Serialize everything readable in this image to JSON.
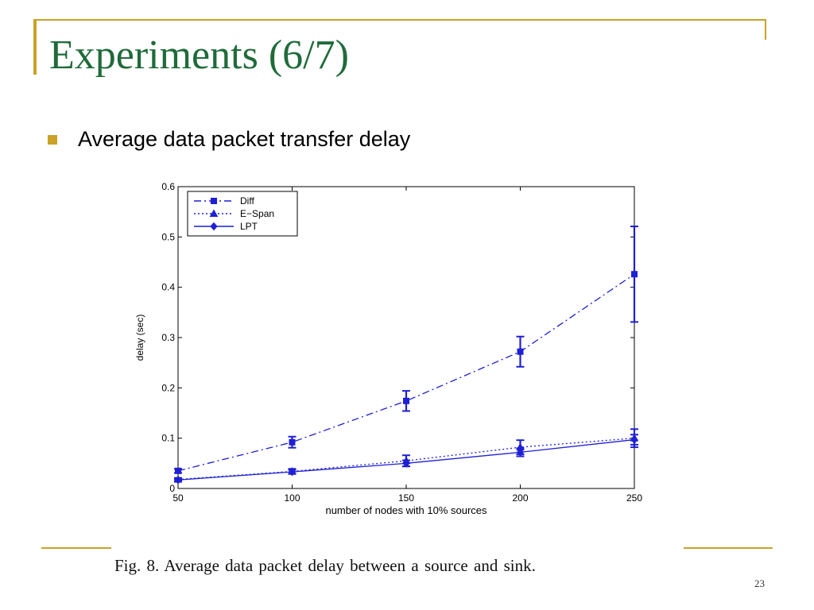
{
  "slide": {
    "title": "Experiments (6/7)",
    "bullet": "Average data packet transfer delay",
    "caption": "Fig. 8.    Average data packet delay between a source and sink.",
    "page_number": "23",
    "accent_color": "#c9a227",
    "title_color": "#1f6b3a"
  },
  "chart_data": {
    "type": "line",
    "title": "",
    "xlabel": "number of nodes with 10% sources",
    "ylabel": "delay (sec)",
    "x": [
      50,
      100,
      150,
      200,
      250
    ],
    "xlim": [
      50,
      250
    ],
    "ylim": [
      0,
      0.6
    ],
    "xticks": [
      50,
      100,
      150,
      200,
      250
    ],
    "yticks": [
      0,
      0.1,
      0.2,
      0.3,
      0.4,
      0.5,
      0.6
    ],
    "ytick_labels": [
      "0",
      "0.1",
      "0.2",
      "0.3",
      "0.4",
      "0.5",
      "0.6"
    ],
    "grid": false,
    "legend_position": "top-left",
    "series": [
      {
        "name": "Diff",
        "values": [
          0.035,
          0.092,
          0.174,
          0.272,
          0.426
        ],
        "error": [
          0.004,
          0.011,
          0.02,
          0.03,
          0.095
        ],
        "color": "#1f1fd6",
        "linestyle": "dash-dot",
        "marker": "square"
      },
      {
        "name": "E−Span",
        "values": [
          0.018,
          0.034,
          0.055,
          0.082,
          0.1
        ],
        "error": [
          0.003,
          0.005,
          0.011,
          0.014,
          0.018
        ],
        "color": "#1f1fd6",
        "linestyle": "dotted",
        "marker": "triangle"
      },
      {
        "name": "LPT",
        "values": [
          0.017,
          0.033,
          0.05,
          0.072,
          0.097
        ],
        "error": [
          0.002,
          0.004,
          0.006,
          0.008,
          0.01
        ],
        "color": "#1f1fd6",
        "linestyle": "solid",
        "marker": "diamond"
      }
    ]
  }
}
